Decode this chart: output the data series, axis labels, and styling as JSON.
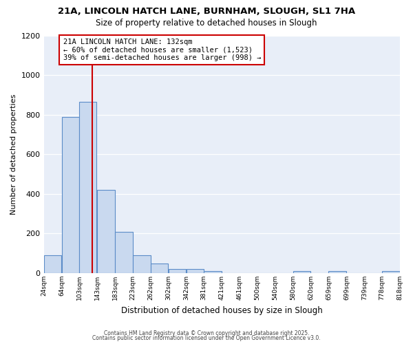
{
  "title1": "21A, LINCOLN HATCH LANE, BURNHAM, SLOUGH, SL1 7HA",
  "title2": "Size of property relative to detached houses in Slough",
  "xlabel": "Distribution of detached houses by size in Slough",
  "ylabel": "Number of detached properties",
  "bar_left_edges": [
    24,
    64,
    103,
    143,
    183,
    223,
    262,
    302,
    342,
    381,
    421,
    461,
    500,
    540,
    580,
    620,
    659,
    699,
    739,
    778
  ],
  "bar_heights": [
    90,
    790,
    865,
    420,
    210,
    90,
    50,
    20,
    20,
    10,
    0,
    0,
    0,
    0,
    10,
    0,
    10,
    0,
    0,
    10
  ],
  "bin_width": 39,
  "bar_color": "#c9d9ef",
  "bar_edge_color": "#5b8cc8",
  "vline_x": 132,
  "vline_color": "#cc0000",
  "annotation_text": "21A LINCOLN HATCH LANE: 132sqm\n← 60% of detached houses are smaller (1,523)\n39% of semi-detached houses are larger (998) →",
  "annotation_box_color": "#ffffff",
  "annotation_box_edge": "#cc0000",
  "ylim": [
    0,
    1200
  ],
  "yticks": [
    0,
    200,
    400,
    600,
    800,
    1000,
    1200
  ],
  "xlabels": [
    "24sqm",
    "64sqm",
    "103sqm",
    "143sqm",
    "183sqm",
    "223sqm",
    "262sqm",
    "302sqm",
    "342sqm",
    "381sqm",
    "421sqm",
    "461sqm",
    "500sqm",
    "540sqm",
    "580sqm",
    "620sqm",
    "659sqm",
    "699sqm",
    "739sqm",
    "778sqm",
    "818sqm"
  ],
  "fig_background_color": "#ffffff",
  "plot_background_color": "#e8eef8",
  "grid_color": "#ffffff",
  "footer1": "Contains HM Land Registry data © Crown copyright and database right 2025.",
  "footer2": "Contains public sector information licensed under the Open Government Licence v3.0."
}
